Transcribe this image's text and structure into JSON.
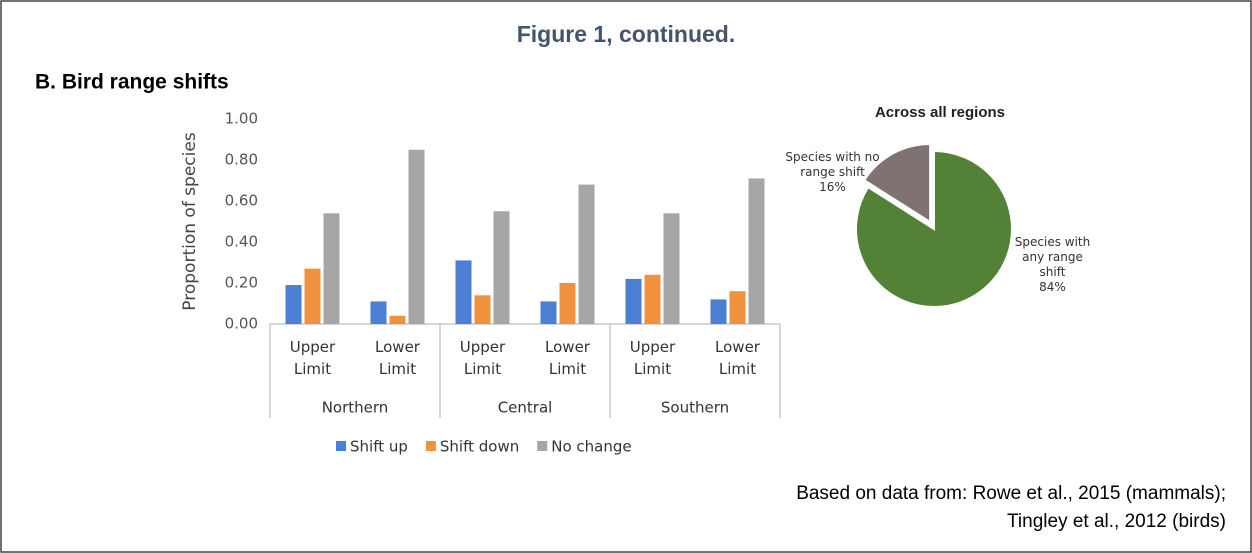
{
  "figure_title": "Figure 1, continued.",
  "panel_label": "B.  Bird range shifts",
  "source": [
    "Based on data from: Rowe et al., 2015 (mammals);",
    "Tingley et al., 2012 (birds)"
  ],
  "chart_data": [
    {
      "type": "bar",
      "ylabel": "Proportion of species",
      "groups": [
        "Northern",
        "Central",
        "Southern"
      ],
      "categories": [
        "Upper Limit",
        "Lower Limit",
        "Upper Limit",
        "Lower Limit",
        "Upper Limit",
        "Lower Limit"
      ],
      "series": [
        {
          "name": "Shift up",
          "color": "#4a7fd4",
          "values": [
            0.19,
            0.11,
            0.31,
            0.11,
            0.22,
            0.12
          ]
        },
        {
          "name": "Shift down",
          "color": "#f0913d",
          "values": [
            0.27,
            0.04,
            0.14,
            0.2,
            0.24,
            0.16
          ]
        },
        {
          "name": "No change",
          "color": "#a6a6a6",
          "values": [
            0.54,
            0.85,
            0.55,
            0.68,
            0.54,
            0.71
          ]
        }
      ],
      "ylim": [
        0,
        1
      ],
      "yticks": [
        {
          "value": 0,
          "label": "0.00"
        },
        {
          "value": 0.2,
          "label": "0.20"
        },
        {
          "value": 0.4,
          "label": "0.40"
        },
        {
          "value": 0.6,
          "label": "0.60"
        },
        {
          "value": 0.8,
          "label": "0.80"
        },
        {
          "value": 1,
          "label": "1.00"
        }
      ],
      "grid": false,
      "legend": "bottom"
    },
    {
      "type": "pie",
      "title": "Across all regions",
      "categories": [
        "Species with no range shift",
        "Species with any range shift"
      ],
      "values": [
        16,
        84
      ],
      "value_labels": [
        "16%",
        "84%"
      ],
      "colors": [
        "#7f7272",
        "#538135"
      ]
    }
  ]
}
